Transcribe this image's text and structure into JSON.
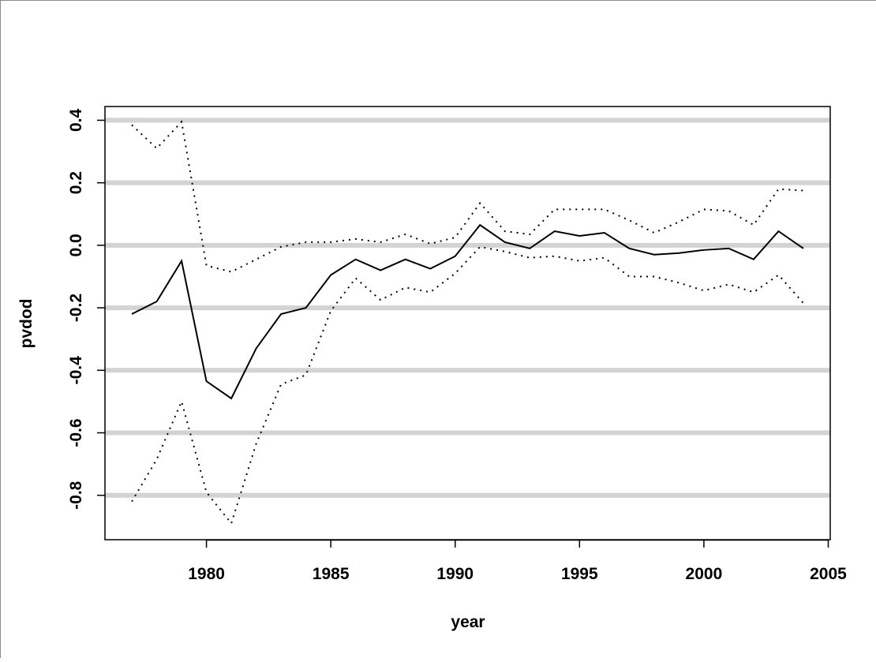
{
  "chart_data": {
    "type": "line",
    "xlabel": "year",
    "ylabel": "pvdod",
    "x": [
      1977,
      1978,
      1979,
      1980,
      1981,
      1982,
      1983,
      1984,
      1985,
      1986,
      1987,
      1988,
      1989,
      1990,
      1991,
      1992,
      1993,
      1994,
      1995,
      1996,
      1997,
      1998,
      1999,
      2000,
      2001,
      2002,
      2003,
      2004
    ],
    "series": [
      {
        "color": "#000000",
        "style": "solid",
        "values": [
          -0.22,
          -0.18,
          -0.05,
          -0.435,
          -0.49,
          -0.33,
          -0.22,
          -0.2,
          -0.095,
          -0.045,
          -0.08,
          -0.045,
          -0.075,
          -0.035,
          0.065,
          0.01,
          -0.01,
          0.045,
          0.03,
          0.04,
          -0.01,
          -0.03,
          -0.025,
          -0.015,
          -0.01,
          -0.045,
          0.045,
          -0.01
        ]
      },
      {
        "color": "#000000",
        "style": "dotted",
        "values": [
          0.385,
          0.31,
          0.395,
          -0.065,
          -0.085,
          -0.045,
          -0.005,
          0.01,
          0.01,
          0.02,
          0.01,
          0.035,
          0.005,
          0.025,
          0.135,
          0.045,
          0.035,
          0.115,
          0.115,
          0.115,
          0.08,
          0.04,
          0.075,
          0.115,
          0.11,
          0.065,
          0.18,
          0.175
        ]
      },
      {
        "color": "#000000",
        "style": "dotted",
        "values": [
          -0.82,
          -0.685,
          -0.5,
          -0.79,
          -0.89,
          -0.635,
          -0.445,
          -0.415,
          -0.21,
          -0.105,
          -0.175,
          -0.135,
          -0.15,
          -0.09,
          -0.005,
          -0.02,
          -0.04,
          -0.035,
          -0.05,
          -0.04,
          -0.1,
          -0.1,
          -0.12,
          -0.145,
          -0.125,
          -0.15,
          -0.095,
          -0.185
        ]
      }
    ],
    "xlim": [
      1975.92,
      2005.08
    ],
    "xticks": [
      1980,
      1985,
      1990,
      1995,
      2000,
      2005
    ],
    "ylim": [
      -0.942,
      0.444
    ],
    "yticks": [
      -0.8,
      -0.6,
      -0.4,
      -0.2,
      {
        "value": 0,
        "label": "0.0"
      },
      0.2,
      0.4
    ],
    "grid": true,
    "grid_color": "#d3d3d3"
  }
}
